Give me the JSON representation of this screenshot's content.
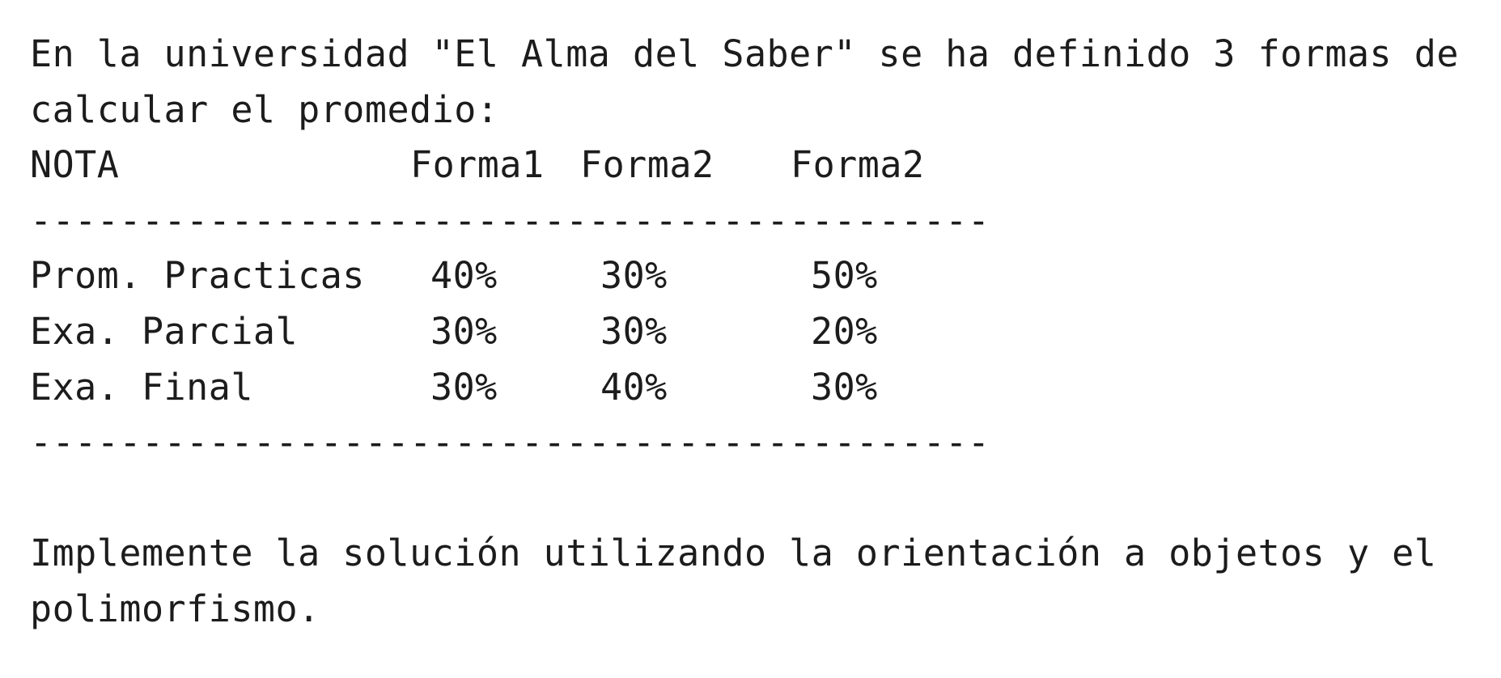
{
  "intro": {
    "line1": "En la universidad \"El Alma del Saber\" se ha definido 3 formas de",
    "line2": "calcular el promedio:"
  },
  "table": {
    "headers": [
      "NOTA",
      "Forma1",
      "Forma2",
      "Forma2"
    ],
    "rule": "-------------------------------------------",
    "rows": [
      {
        "nota": "Prom. Practicas",
        "f1": "40%",
        "f2": "30%",
        "f3": "50%"
      },
      {
        "nota": "Exa. Parcial",
        "f1": "30%",
        "f2": "30%",
        "f3": "20%"
      },
      {
        "nota": "Exa. Final",
        "f1": "30%",
        "f2": "40%",
        "f3": "30%"
      }
    ]
  },
  "outro": {
    "line1": "Implemente la solución utilizando la orientación a objetos y el",
    "line2": "polimorfismo."
  }
}
